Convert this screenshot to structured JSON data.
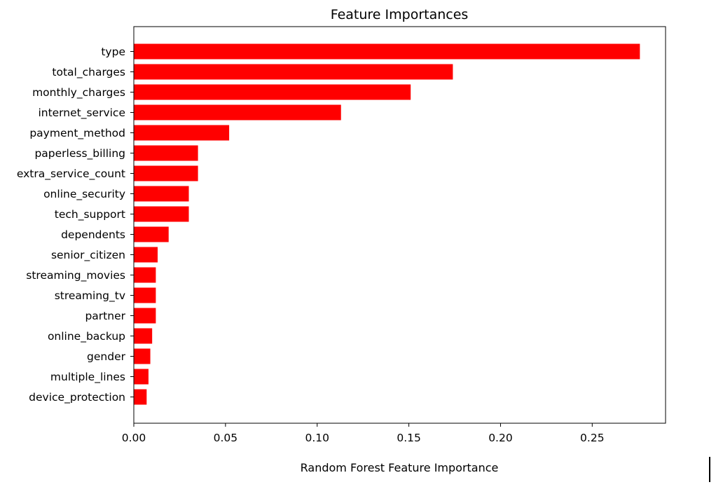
{
  "chart_data": {
    "type": "bar",
    "orientation": "horizontal",
    "title": "Feature Importances",
    "xlabel": "Random Forest Feature Importance",
    "ylabel": "",
    "xlim": [
      0.0,
      0.29
    ],
    "xticks": [
      0.0,
      0.05,
      0.1,
      0.15,
      0.2,
      0.25
    ],
    "xtick_labels": [
      "0.00",
      "0.05",
      "0.10",
      "0.15",
      "0.20",
      "0.25"
    ],
    "bar_color": "#ff0000",
    "grid": false,
    "categories": [
      "type",
      "total_charges",
      "monthly_charges",
      "internet_service",
      "payment_method",
      "paperless_billing",
      "extra_service_count",
      "online_security",
      "tech_support",
      "dependents",
      "senior_citizen",
      "streaming_movies",
      "streaming_tv",
      "partner",
      "online_backup",
      "gender",
      "multiple_lines",
      "device_protection"
    ],
    "values": [
      0.276,
      0.174,
      0.151,
      0.113,
      0.052,
      0.035,
      0.035,
      0.03,
      0.03,
      0.019,
      0.013,
      0.012,
      0.012,
      0.012,
      0.01,
      0.009,
      0.008,
      0.007
    ]
  }
}
